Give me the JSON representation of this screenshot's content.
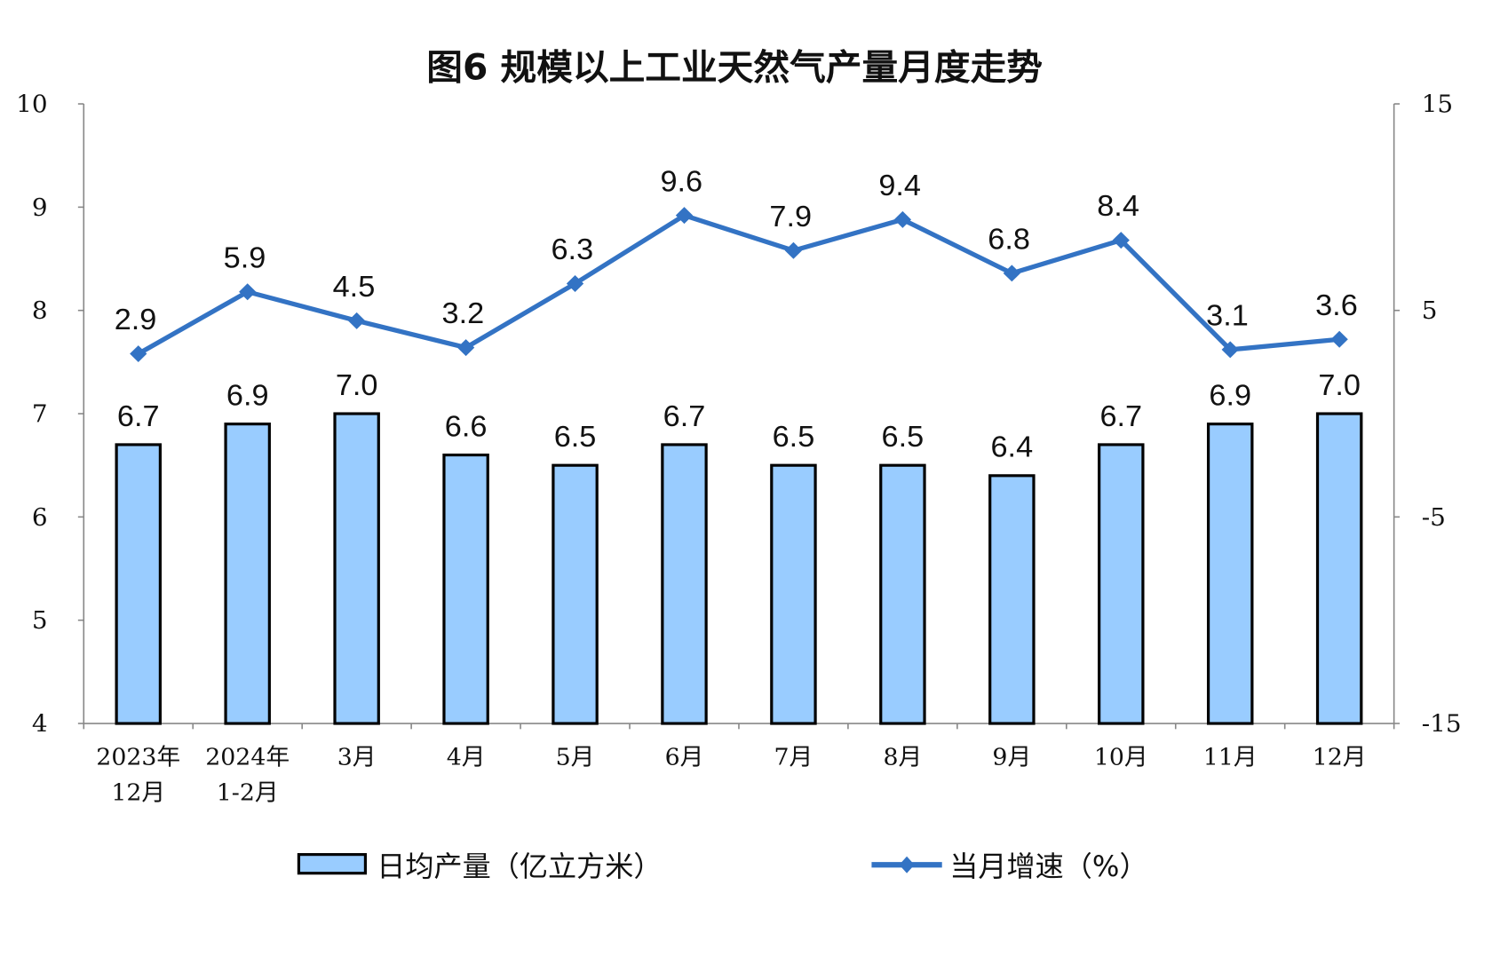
{
  "chart_data": {
    "type": "bar+line",
    "title": "图6  规模以上工业天然气产量月度走势",
    "categories": [
      [
        "2023年",
        "12月"
      ],
      [
        "2024年",
        "1-2月"
      ],
      [
        "3月"
      ],
      [
        "4月"
      ],
      [
        "5月"
      ],
      [
        "6月"
      ],
      [
        "7月"
      ],
      [
        "8月"
      ],
      [
        "9月"
      ],
      [
        "10月"
      ],
      [
        "11月"
      ],
      [
        "12月"
      ]
    ],
    "series": [
      {
        "name": "日均产量（亿立方米）",
        "type": "bar",
        "axis": "left",
        "color": "#99CCFF",
        "edge_color": "#000000",
        "values": [
          6.7,
          6.9,
          7.0,
          6.6,
          6.5,
          6.7,
          6.5,
          6.5,
          6.4,
          6.7,
          6.9,
          7.0
        ],
        "labels": [
          "6.7",
          "6.9",
          "7.0",
          "6.6",
          "6.5",
          "6.7",
          "6.5",
          "6.5",
          "6.4",
          "6.7",
          "6.9",
          "7.0"
        ]
      },
      {
        "name": "当月增速（%）",
        "type": "line",
        "axis": "right",
        "color": "#3373C4",
        "marker": "diamond",
        "values": [
          2.9,
          5.9,
          4.5,
          3.2,
          6.3,
          9.6,
          7.9,
          9.4,
          6.8,
          8.4,
          3.1,
          3.6
        ],
        "labels": [
          "2.9",
          "5.9",
          "4.5",
          "3.2",
          "6.3",
          "9.6",
          "7.9",
          "9.4",
          "6.8",
          "8.4",
          "3.1",
          "3.6"
        ]
      }
    ],
    "y_left": {
      "range": [
        4,
        10
      ],
      "ticks": [
        "4",
        "5",
        "6",
        "7",
        "8",
        "9",
        "10"
      ]
    },
    "y_right": {
      "range": [
        -15,
        15
      ],
      "ticks": [
        "-15",
        "-5",
        "5",
        "15"
      ]
    },
    "grid": false,
    "legend": "bottom"
  }
}
